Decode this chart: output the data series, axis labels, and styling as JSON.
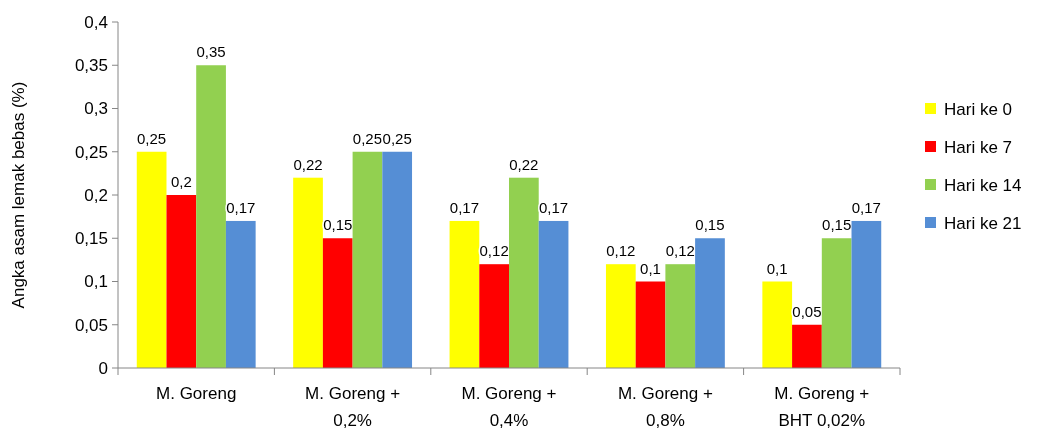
{
  "chart_data": {
    "type": "bar",
    "ylabel": "Angka asam lemak bebas (%)",
    "categories": [
      "M. Goreng",
      "M. Goreng + 0,2%",
      "M. Goreng + 0,4%",
      "M. Goreng + 0,8%",
      "M. Goreng + BHT 0,02%"
    ],
    "series": [
      {
        "name": "Hari ke 0",
        "color": "#ffff00",
        "values": [
          0.25,
          0.22,
          0.17,
          0.12,
          0.1
        ],
        "value_labels": [
          "0,25",
          "0,22",
          "0,17",
          "0,12",
          "0,1"
        ]
      },
      {
        "name": "Hari ke 7",
        "color": "#ff0000",
        "values": [
          0.2,
          0.15,
          0.12,
          0.1,
          0.05
        ],
        "value_labels": [
          "0,2",
          "0,15",
          "0,12",
          "0,1",
          "0,05"
        ]
      },
      {
        "name": "Hari ke 14",
        "color": "#92d050",
        "values": [
          0.35,
          0.25,
          0.22,
          0.12,
          0.15
        ],
        "value_labels": [
          "0,35",
          "0,25",
          "0,22",
          "0,12",
          "0,15"
        ]
      },
      {
        "name": "Hari ke 21",
        "color": "#558ed5",
        "values": [
          0.17,
          0.25,
          0.17,
          0.15,
          0.17
        ],
        "value_labels": [
          "0,17",
          "0,25",
          "0,17",
          "0,15",
          "0,17"
        ]
      }
    ],
    "ylim": [
      0,
      0.4
    ],
    "yticks": [
      0,
      {
        "value": 0.05,
        "label": "0,05"
      },
      {
        "value": 0.1,
        "label": "0,1"
      },
      {
        "value": 0.15,
        "label": "0,15"
      },
      {
        "value": 0.2,
        "label": "0,2"
      },
      {
        "value": 0.25,
        "label": "0,25"
      },
      {
        "value": 0.3,
        "label": "0,3"
      },
      {
        "value": 0.35,
        "label": "0,35"
      },
      {
        "value": 0.4,
        "label": "0,4"
      }
    ],
    "grid": false,
    "legend": "right"
  }
}
